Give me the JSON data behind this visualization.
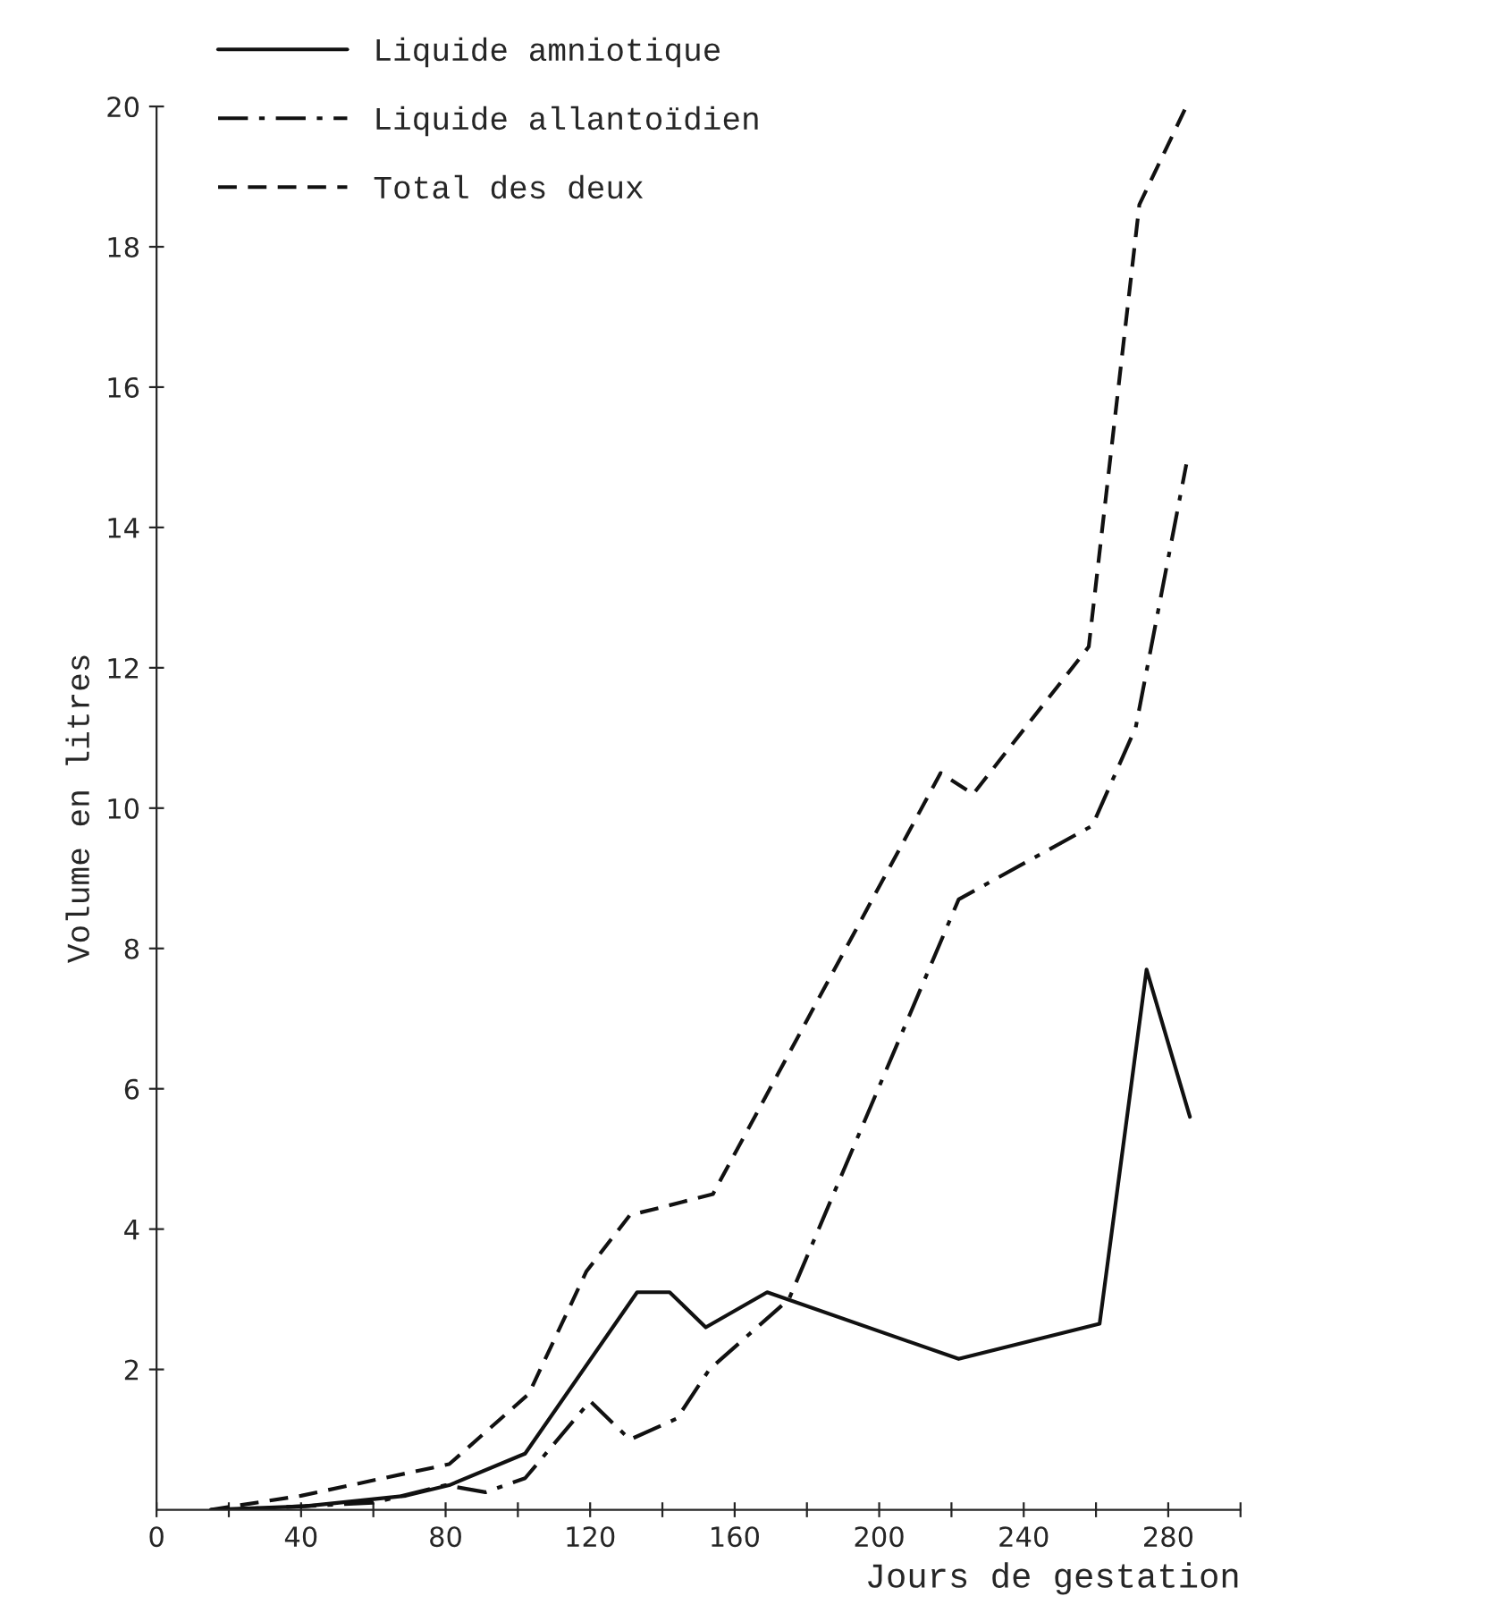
{
  "chart_data": {
    "type": "line",
    "xlabel": "Jours de gestation",
    "ylabel": "Volume en litres",
    "xlim": [
      0,
      300
    ],
    "ylim": [
      0,
      20
    ],
    "xticks": [
      0,
      {
        "value": 20,
        "label": null
      },
      40,
      {
        "value": 60,
        "label": null
      },
      80,
      {
        "value": 100,
        "label": null
      },
      120,
      {
        "value": 140,
        "label": null
      },
      160,
      {
        "value": 180,
        "label": null
      },
      200,
      {
        "value": 220,
        "label": null
      },
      240,
      {
        "value": 260,
        "label": null
      },
      280,
      {
        "value": 300,
        "label": null
      }
    ],
    "yticks": [
      2,
      4,
      6,
      8,
      10,
      12,
      14,
      16,
      18,
      20
    ],
    "legend": "top left",
    "grid": false,
    "series": [
      {
        "name": "Liquide amniotique",
        "color": "#111111",
        "line_style": "solid",
        "x": [
          15,
          41,
          69,
          81,
          102,
          133,
          142,
          152,
          169,
          222,
          261,
          274,
          286
        ],
        "values": [
          0,
          0.05,
          0.2,
          0.35,
          0.8,
          3.1,
          3.1,
          2.6,
          3.1,
          2.15,
          2.65,
          7.7,
          5.6
        ]
      },
      {
        "name": "Liquide allantoïdien",
        "color": "#111111",
        "line_style": "dashdot",
        "x": [
          20,
          60,
          80,
          91,
          102,
          120,
          131,
          144,
          153,
          175,
          222,
          259,
          271,
          285
        ],
        "values": [
          0,
          0.1,
          0.35,
          0.25,
          0.45,
          1.55,
          1.0,
          1.3,
          2.0,
          3.0,
          8.7,
          9.75,
          11.15,
          14.9
        ]
      },
      {
        "name": "Total des deux",
        "color": "#111111",
        "line_style": "dashed",
        "x": [
          15,
          40,
          81,
          103,
          119,
          131,
          139,
          154,
          217,
          226,
          258,
          272,
          285
        ],
        "values": [
          0,
          0.2,
          0.65,
          1.65,
          3.4,
          4.2,
          4.3,
          4.5,
          10.5,
          10.2,
          12.3,
          18.6,
          20.0
        ]
      }
    ]
  }
}
